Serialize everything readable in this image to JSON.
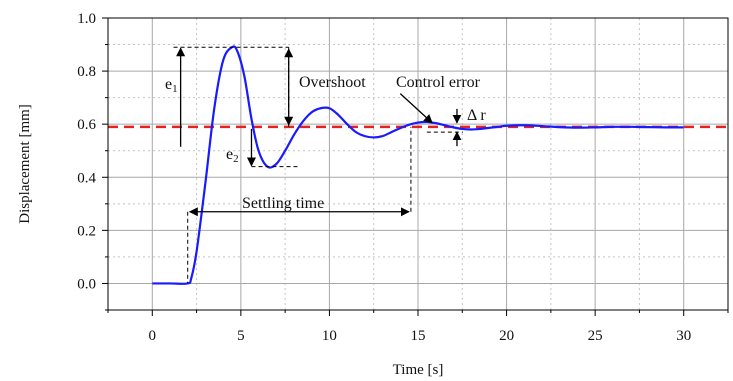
{
  "chart_data": {
    "type": "line",
    "xlabel": "Time [s]",
    "ylabel": "Displacement [mm]",
    "xlim": [
      -2.5,
      32.5
    ],
    "ylim": [
      -0.1,
      1.0
    ],
    "xticks": [
      0,
      5,
      10,
      15,
      20,
      25,
      30
    ],
    "xtick_labels": [
      "0",
      "5",
      "10",
      "15",
      "20",
      "25",
      "30"
    ],
    "yticks": [
      0.0,
      0.2,
      0.4,
      0.6,
      0.8,
      1.0
    ],
    "ytick_labels": [
      "0.0",
      "0.2",
      "0.4",
      "0.6",
      "0.8",
      "1.0"
    ],
    "grid": true,
    "colors": {
      "response": "#1a1aff",
      "reference": "#e32222",
      "annotation": "#000000"
    },
    "series": [
      {
        "style": "solid",
        "x": [
          0,
          1,
          2,
          2.2,
          2.5,
          3,
          3.5,
          4,
          4.5,
          4.8,
          5.2,
          5.6,
          6,
          6.5,
          7,
          7.5,
          8,
          8.5,
          9,
          9.5,
          10,
          10.5,
          11,
          11.5,
          12,
          12.5,
          13,
          13.5,
          14,
          14.5,
          15,
          15.5,
          16,
          16.5,
          17,
          17.5,
          18,
          18.5,
          19,
          19.5,
          20,
          21,
          22,
          23,
          24,
          25,
          26,
          27,
          28,
          29,
          30
        ],
        "y": [
          0,
          0,
          0,
          0.02,
          0.12,
          0.38,
          0.66,
          0.84,
          0.89,
          0.875,
          0.78,
          0.62,
          0.5,
          0.44,
          0.45,
          0.5,
          0.56,
          0.61,
          0.645,
          0.66,
          0.66,
          0.635,
          0.6,
          0.57,
          0.555,
          0.55,
          0.555,
          0.57,
          0.585,
          0.598,
          0.606,
          0.608,
          0.604,
          0.596,
          0.588,
          0.582,
          0.58,
          0.582,
          0.586,
          0.59,
          0.594,
          0.596,
          0.593,
          0.589,
          0.587,
          0.588,
          0.59,
          0.59,
          0.589,
          0.588,
          0.588
        ]
      },
      {
        "style": "dashed",
        "x": [
          -2.5,
          32.5
        ],
        "y": [
          0.59,
          0.59
        ]
      }
    ],
    "annotations": {
      "overshoot": "Overshoot",
      "control_error": "Control error",
      "settling_time": "Settling time",
      "e1_main": "e",
      "e1_sub": "1",
      "e2_main": "e",
      "e2_sub": "2",
      "delta_r": "Δ r"
    }
  }
}
